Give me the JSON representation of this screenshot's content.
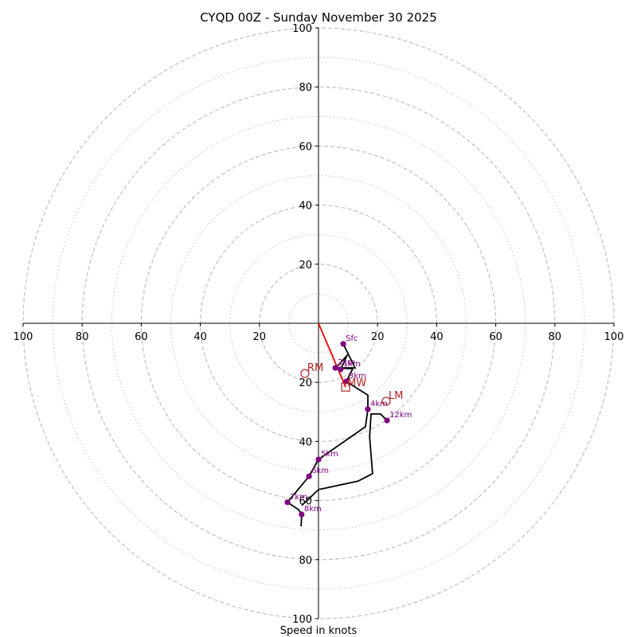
{
  "chart_data": {
    "type": "line",
    "subtype": "hodograph",
    "title": "CYQD 00Z - Sunday November 30 2025",
    "xlabel": "Speed in knots",
    "ylabel": "",
    "range_knots": 100,
    "ring_interval": 10,
    "major_rings": [
      20,
      40,
      60,
      80,
      100
    ],
    "minor_rings": [
      10,
      30,
      50,
      70,
      90
    ],
    "tick_labels": {
      "left": [
        "100",
        "80",
        "60",
        "40",
        "20"
      ],
      "right": [
        "20",
        "40",
        "60",
        "80",
        "100"
      ],
      "top": [
        "20",
        "40",
        "60",
        "80",
        "100"
      ],
      "bottom": [
        "20",
        "40",
        "60",
        "80",
        "100"
      ]
    },
    "grid": true,
    "colors": {
      "hodograph_line": "#000000",
      "height_markers": "#800080",
      "storm_motion": "#b22222",
      "mean_wind_vector": "#ff0000",
      "rings": "#bfbfbf"
    },
    "hodograph_path": [
      [
        8.4,
        -7.0
      ],
      [
        9.7,
        -9.7
      ],
      [
        12.4,
        -15.1
      ],
      [
        5.9,
        -15.1
      ],
      [
        9.7,
        -10.8
      ],
      [
        7.5,
        -15.6
      ],
      [
        5.7,
        -15.1
      ],
      [
        11.6,
        -15.4
      ],
      [
        9.4,
        -19.7
      ],
      [
        16.7,
        -24.3
      ],
      [
        16.7,
        -29.1
      ],
      [
        15.9,
        -35.0
      ],
      [
        0.0,
        -46.1
      ],
      [
        -3.2,
        -51.8
      ],
      [
        -10.5,
        -60.6
      ],
      [
        -6.7,
        -63.1
      ],
      [
        -5.7,
        -64.7
      ],
      [
        -5.9,
        -68.7
      ]
    ],
    "upper_path": [
      [
        -5.7,
        -61.7
      ],
      [
        0.0,
        -56.3
      ],
      [
        13.5,
        -53.4
      ],
      [
        18.3,
        -50.9
      ],
      [
        17.3,
        -38.5
      ],
      [
        17.8,
        -30.7
      ],
      [
        21.0,
        -30.7
      ],
      [
        23.2,
        -32.9
      ]
    ],
    "height_points": [
      {
        "label": "Sfc",
        "u": 8.4,
        "v": -7.0
      },
      {
        "label": "1km",
        "u": 7.5,
        "v": -15.6
      },
      {
        "label": "2km",
        "u": 5.7,
        "v": -15.1
      },
      {
        "label": "3km",
        "u": 9.4,
        "v": -19.7
      },
      {
        "label": "4km",
        "u": 16.7,
        "v": -29.1
      },
      {
        "label": "5km",
        "u": 0.0,
        "v": -46.1
      },
      {
        "label": "6km",
        "u": -3.2,
        "v": -51.8
      },
      {
        "label": "7km",
        "u": -10.5,
        "v": -60.6
      },
      {
        "label": "8km",
        "u": -5.7,
        "v": -64.7
      },
      {
        "label": "12km",
        "u": 23.2,
        "v": -32.9
      }
    ],
    "storm_motion": [
      {
        "label": "RM",
        "u": -4.6,
        "v": -17.0,
        "marker": "circle"
      },
      {
        "label": "LM",
        "u": 22.9,
        "v": -26.4,
        "marker": "circle"
      },
      {
        "label": "MW",
        "u": 9.2,
        "v": -21.6,
        "marker": "square"
      }
    ],
    "mean_wind_vector": {
      "from": [
        0,
        0
      ],
      "to": [
        9.2,
        -21.6
      ]
    }
  }
}
